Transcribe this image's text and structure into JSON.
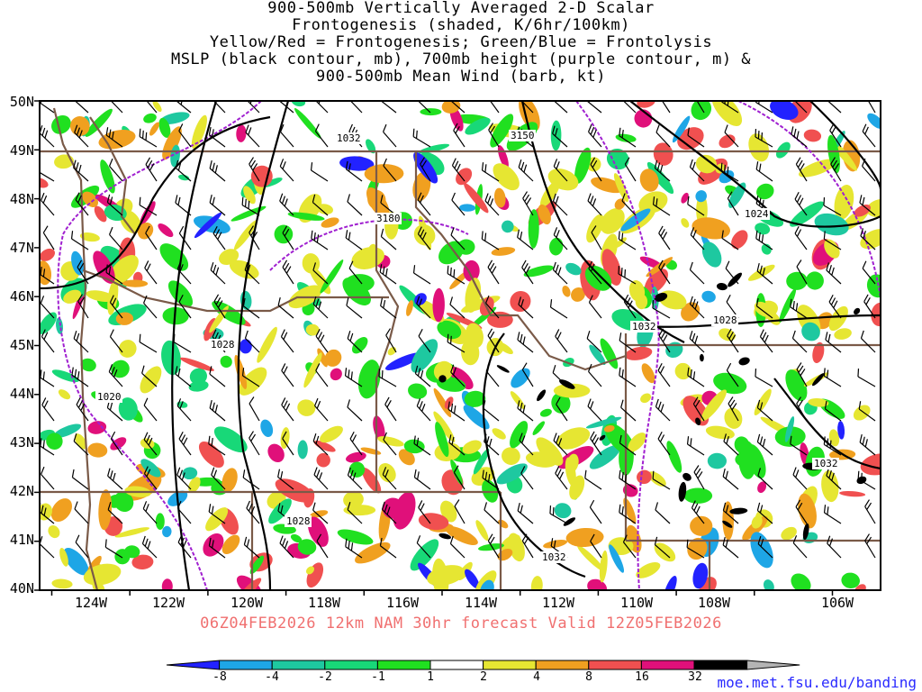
{
  "titles": [
    "900-500mb Vertically Averaged 2-D Scalar",
    "Frontogenesis (shaded, K/6hr/100km)",
    "Yellow/Red = Frontogenesis;  Green/Blue = Frontolysis",
    "MSLP (black contour, mb), 700mb height (purple contour, m) &",
    "900-500mb Mean Wind (barb, kt)"
  ],
  "lat_labels": [
    "50N",
    "49N",
    "48N",
    "47N",
    "46N",
    "45N",
    "44N",
    "43N",
    "42N",
    "41N",
    "40N"
  ],
  "lon_labels": [
    "124W",
    "122W",
    "120W",
    "118W",
    "116W",
    "114W",
    "112W",
    "110W",
    "108W",
    "106W"
  ],
  "contour_labels": {
    "mslp": [
      "1032",
      "1028",
      "1020",
      "1028",
      "1032",
      "1028",
      "1024",
      "1032",
      "1032"
    ],
    "height": [
      "3150",
      "3180"
    ]
  },
  "valid_line": "06Z04FEB2026 12km NAM 30hr forecast Valid 12Z05FEB2026",
  "colorbar": {
    "labels": [
      "-8",
      "-4",
      "-2",
      "-1",
      "1",
      "2",
      "4",
      "8",
      "16",
      "32"
    ],
    "colors": [
      "#2222ff",
      "#1ea6e6",
      "#1ec8a0",
      "#18d878",
      "#20e020",
      "#ffffff",
      "#e6e632",
      "#f0a020",
      "#f05050",
      "#e0107a",
      "#000000",
      "#b4b4b4"
    ]
  },
  "credit": "moe.met.fsu.edu/banding",
  "colors": {
    "state_border": "#7a5a48",
    "mslp": "#000000",
    "height": "#a020d0",
    "valid": "#f07070"
  }
}
